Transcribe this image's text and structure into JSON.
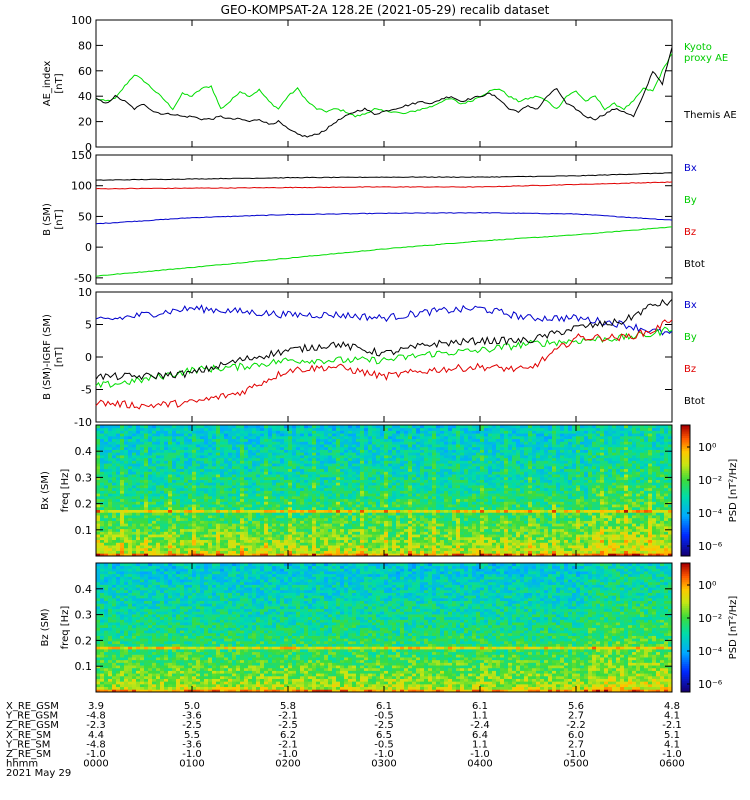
{
  "title": "GEO-KOMPSAT-2A 128.2E (2021-05-29) recalib dataset",
  "colors": {
    "black": "#000000",
    "red": "#e00000",
    "blue": "#0000cc",
    "green": "#00dd00",
    "legend_green": "#00cc00"
  },
  "chart_data": [
    {
      "type": "line",
      "ylabel": "AE_index\n[nT]",
      "ylim": [
        0,
        100
      ],
      "yticks": [
        "0",
        "20",
        "40",
        "60",
        "80",
        "100"
      ],
      "x_hours": [
        0,
        0.1,
        0.2,
        0.3,
        0.4,
        0.5,
        0.6,
        0.7,
        0.8,
        0.9,
        1.0,
        1.1,
        1.2,
        1.3,
        1.4,
        1.5,
        1.6,
        1.7,
        1.8,
        1.9,
        2.0,
        2.1,
        2.2,
        2.3,
        2.4,
        2.5,
        2.6,
        2.7,
        2.8,
        2.9,
        3.0,
        3.1,
        3.2,
        3.3,
        3.4,
        3.5,
        3.6,
        3.7,
        3.8,
        3.9,
        4.0,
        4.1,
        4.2,
        4.3,
        4.4,
        4.5,
        4.6,
        4.7,
        4.8,
        4.9,
        5.0,
        5.1,
        5.2,
        5.3,
        5.4,
        5.5,
        5.6,
        5.7,
        5.8,
        5.9,
        6.0
      ],
      "series": [
        {
          "name": "Kyoto\nproxy AE",
          "color": "#00dd00",
          "values": [
            38,
            36,
            38,
            48,
            57,
            52,
            45,
            38,
            30,
            42,
            40,
            46,
            48,
            30,
            36,
            44,
            40,
            45,
            36,
            30,
            40,
            46,
            36,
            30,
            28,
            30,
            28,
            24,
            26,
            30,
            28,
            28,
            26,
            28,
            30,
            32,
            36,
            38,
            34,
            36,
            40,
            44,
            46,
            40,
            36,
            38,
            40,
            36,
            30,
            40,
            44,
            36,
            40,
            30,
            34,
            30,
            36,
            46,
            44,
            60,
            74
          ]
        },
        {
          "name": "Themis AE",
          "color": "#000000",
          "values": [
            38,
            34,
            40,
            36,
            30,
            34,
            28,
            26,
            26,
            24,
            24,
            22,
            22,
            24,
            22,
            22,
            20,
            22,
            18,
            20,
            14,
            10,
            8,
            10,
            14,
            20,
            24,
            28,
            30,
            26,
            28,
            30,
            32,
            34,
            36,
            34,
            38,
            40,
            36,
            38,
            40,
            42,
            38,
            30,
            28,
            32,
            30,
            40,
            46,
            34,
            30,
            24,
            22,
            26,
            30,
            28,
            24,
            40,
            60,
            50,
            78
          ]
        }
      ]
    },
    {
      "type": "line",
      "ylabel": "B (SM)\n[nT]",
      "ylim": [
        -60,
        150
      ],
      "yticks": [
        "-50",
        "0",
        "50",
        "100",
        "150"
      ],
      "x_hours": [
        0,
        1,
        2,
        3,
        4,
        5,
        6
      ],
      "series": [
        {
          "name": "Bx",
          "color": "#0000cc",
          "values": [
            38,
            48,
            53,
            55,
            56,
            54,
            44
          ]
        },
        {
          "name": "By",
          "color": "#00dd00",
          "values": [
            -47,
            -33,
            -18,
            -3,
            10,
            20,
            33
          ]
        },
        {
          "name": "Bz",
          "color": "#e00000",
          "values": [
            95,
            96,
            97,
            98,
            98,
            102,
            106
          ]
        },
        {
          "name": "Btot",
          "color": "#000000",
          "values": [
            109,
            111,
            113,
            114,
            114,
            116,
            121
          ]
        }
      ]
    },
    {
      "type": "line",
      "ylabel": "B (SM)-IGRF (SM)\n[nT]",
      "ylim": [
        -10,
        10
      ],
      "yticks": [
        "-10",
        "-5",
        "0",
        "5",
        "10"
      ],
      "x_hours": [
        0,
        0.5,
        1.0,
        1.5,
        2.0,
        2.5,
        3.0,
        3.5,
        4.0,
        4.5,
        5.0,
        5.5,
        5.8,
        6.0
      ],
      "series": [
        {
          "name": "Bx",
          "color": "#0000cc",
          "values": [
            5.5,
            6.5,
            7.5,
            7.0,
            6.5,
            6.5,
            6.0,
            7.0,
            7.5,
            6.0,
            6.0,
            5.0,
            4.0,
            3.5
          ]
        },
        {
          "name": "By",
          "color": "#00dd00",
          "values": [
            -4.5,
            -3.5,
            -2.0,
            -1.5,
            -0.5,
            -0.5,
            -0.5,
            0.5,
            1.0,
            2.0,
            2.5,
            3.0,
            3.5,
            4.5
          ]
        },
        {
          "name": "Bz",
          "color": "#e00000",
          "values": [
            -7.0,
            -7.5,
            -7.0,
            -5.5,
            -2.0,
            -1.5,
            -3.0,
            -2.0,
            -1.5,
            -2.0,
            3.0,
            3.0,
            4.0,
            6.0
          ]
        },
        {
          "name": "Btot",
          "color": "#000000",
          "values": [
            -3.0,
            -3.0,
            -2.5,
            -0.5,
            1.0,
            2.0,
            0.5,
            2.0,
            2.5,
            2.5,
            4.5,
            5.5,
            8.0,
            8.5
          ]
        }
      ]
    },
    {
      "type": "heatmap",
      "ylabel_left": "Bx (SM)",
      "ylabel": "freq [Hz]",
      "ylim": [
        0,
        0.5
      ],
      "yticks": [
        "0.1",
        "0.2",
        "0.3",
        "0.4"
      ],
      "colorbar_label": "PSD [nT²/Hz]",
      "colorbar_ticks": [
        "10⁰",
        "10⁻²",
        "10⁻⁴",
        "10⁻⁶"
      ]
    },
    {
      "type": "heatmap",
      "ylabel_left": "Bz (SM)",
      "ylabel": "freq [Hz]",
      "ylim": [
        0,
        0.5
      ],
      "yticks": [
        "0.1",
        "0.2",
        "0.3",
        "0.4"
      ],
      "colorbar_label": "PSD [nT²/Hz]",
      "colorbar_ticks": [
        "10⁰",
        "10⁻²",
        "10⁻⁴",
        "10⁻⁶"
      ]
    }
  ],
  "ephemeris": {
    "labels": [
      "X_RE_GSM",
      "Y_RE_GSM",
      "Z_RE_GSM",
      "X_RE_SM",
      "Y_RE_SM",
      "Z_RE_SM",
      "hhmm",
      "2021 May 29"
    ],
    "columns": [
      [
        "3.9",
        "-4.8",
        "-2.3",
        "4.4",
        "-4.8",
        "-1.0",
        "0000"
      ],
      [
        "5.0",
        "-3.6",
        "-2.5",
        "5.5",
        "-3.6",
        "-1.0",
        "0100"
      ],
      [
        "5.8",
        "-2.1",
        "-2.5",
        "6.2",
        "-2.1",
        "-1.0",
        "0200"
      ],
      [
        "6.1",
        "-0.5",
        "-2.5",
        "6.5",
        "-0.5",
        "-1.0",
        "0300"
      ],
      [
        "6.1",
        "1.1",
        "-2.4",
        "6.4",
        "1.1",
        "-1.0",
        "0400"
      ],
      [
        "5.6",
        "2.7",
        "-2.2",
        "6.0",
        "2.7",
        "-1.0",
        "0500"
      ],
      [
        "4.8",
        "4.1",
        "-2.1",
        "5.1",
        "4.1",
        "-1.0",
        "0600"
      ]
    ]
  }
}
